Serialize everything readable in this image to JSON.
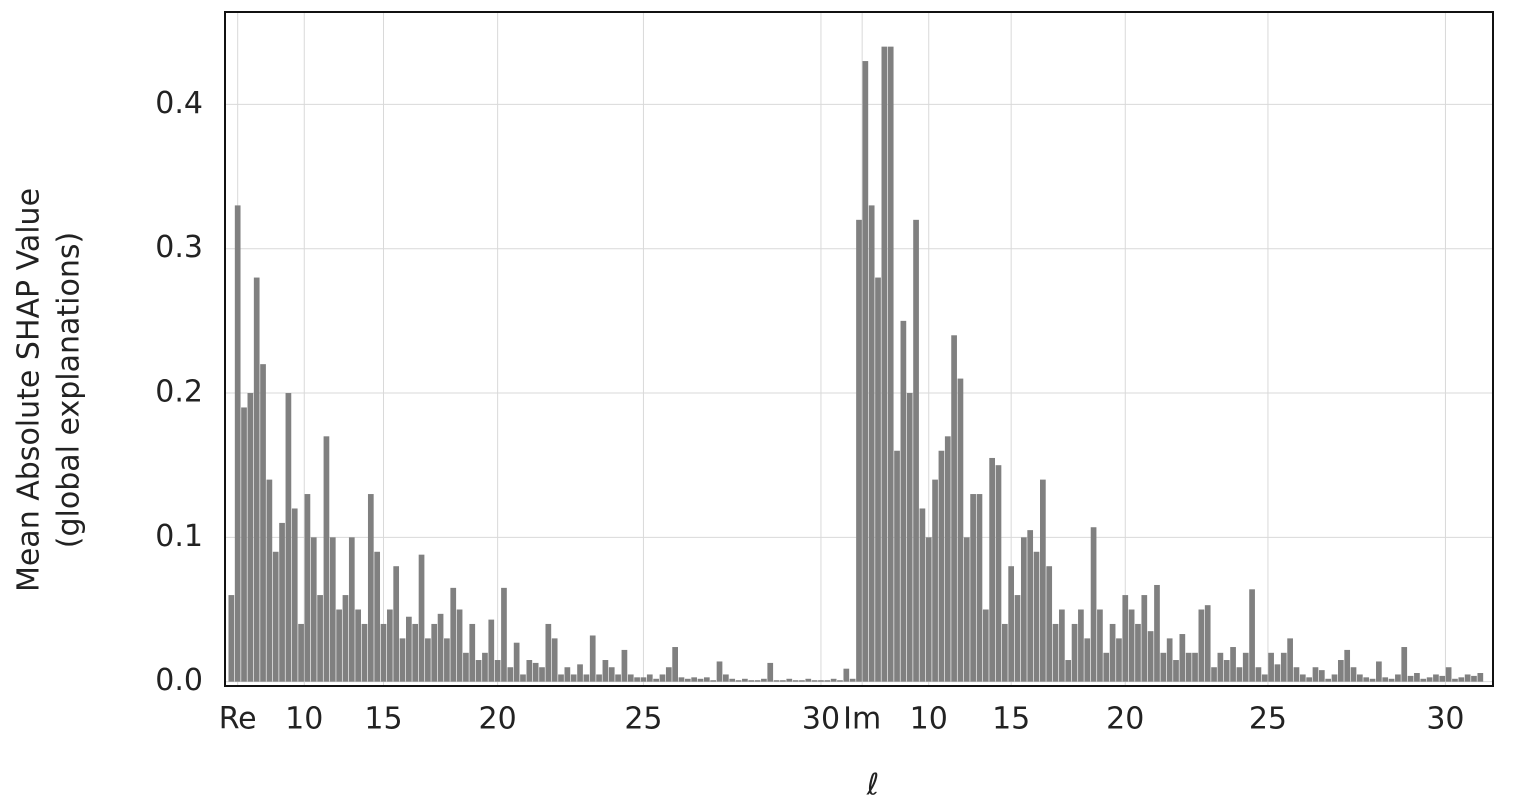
{
  "chart_data": {
    "type": "bar",
    "ylabel": [
      "Mean Absolute SHAP Value",
      "(global explanations)"
    ],
    "xlabel": "ℓ",
    "color": "#808080",
    "grid": true,
    "ylim": [
      -0.003,
      0.464
    ],
    "yticks": [
      {
        "value": 0,
        "label": "0.0"
      },
      0.1,
      0.2,
      0.3,
      0.4
    ],
    "xlim": [
      -1,
      199
    ],
    "xticks": [
      {
        "value": 1,
        "label": "Re"
      },
      {
        "value": 11.5,
        "label": "10"
      },
      {
        "value": 24,
        "label": "15"
      },
      {
        "value": 42,
        "label": "20"
      },
      {
        "value": 65,
        "label": "25"
      },
      {
        "value": 93,
        "label": "30"
      },
      {
        "value": 99.5,
        "label": "Im"
      },
      {
        "value": 110,
        "label": "10"
      },
      {
        "value": 123,
        "label": "15"
      },
      {
        "value": 141,
        "label": "20"
      },
      {
        "value": 163.5,
        "label": "25"
      },
      {
        "value": 191.5,
        "label": "30"
      }
    ],
    "values": [
      0.06,
      0.33,
      0.19,
      0.2,
      0.28,
      0.22,
      0.14,
      0.09,
      0.11,
      0.2,
      0.12,
      0.04,
      0.13,
      0.1,
      0.06,
      0.17,
      0.1,
      0.05,
      0.06,
      0.1,
      0.05,
      0.04,
      0.13,
      0.09,
      0.04,
      0.05,
      0.08,
      0.03,
      0.045,
      0.04,
      0.088,
      0.03,
      0.04,
      0.047,
      0.03,
      0.065,
      0.05,
      0.02,
      0.04,
      0.015,
      0.02,
      0.043,
      0.015,
      0.065,
      0.01,
      0.027,
      0.005,
      0.015,
      0.013,
      0.01,
      0.04,
      0.03,
      0.005,
      0.01,
      0.005,
      0.012,
      0.005,
      0.032,
      0.005,
      0.015,
      0.01,
      0.005,
      0.022,
      0.005,
      0.003,
      0.003,
      0.005,
      0.002,
      0.005,
      0.01,
      0.024,
      0.003,
      0.002,
      0.003,
      0.002,
      0.003,
      0.001,
      0.014,
      0.005,
      0.002,
      0.001,
      0.002,
      0.001,
      0.001,
      0.002,
      0.013,
      0.001,
      0.001,
      0.002,
      0.001,
      0.001,
      0.002,
      0.001,
      0.001,
      0.001,
      0.002,
      0.001,
      0.009,
      0.002,
      0.32,
      0.43,
      0.33,
      0.28,
      0.44,
      0.44,
      0.16,
      0.25,
      0.2,
      0.32,
      0.12,
      0.1,
      0.14,
      0.16,
      0.17,
      0.24,
      0.21,
      0.1,
      0.13,
      0.13,
      0.05,
      0.155,
      0.15,
      0.04,
      0.08,
      0.06,
      0.1,
      0.105,
      0.09,
      0.14,
      0.08,
      0.04,
      0.05,
      0.015,
      0.04,
      0.05,
      0.03,
      0.107,
      0.05,
      0.02,
      0.04,
      0.03,
      0.06,
      0.05,
      0.04,
      0.06,
      0.035,
      0.067,
      0.02,
      0.03,
      0.015,
      0.033,
      0.02,
      0.02,
      0.05,
      0.053,
      0.01,
      0.02,
      0.015,
      0.024,
      0.01,
      0.02,
      0.064,
      0.01,
      0.005,
      0.02,
      0.012,
      0.02,
      0.03,
      0.01,
      0.005,
      0.003,
      0.01,
      0.008,
      0.002,
      0.005,
      0.015,
      0.022,
      0.01,
      0.005,
      0.003,
      0.002,
      0.014,
      0.003,
      0.002,
      0.005,
      0.024,
      0.004,
      0.006,
      0.002,
      0.003,
      0.005,
      0.004,
      0.01,
      0.002,
      0.003,
      0.005,
      0.004,
      0.006
    ]
  }
}
